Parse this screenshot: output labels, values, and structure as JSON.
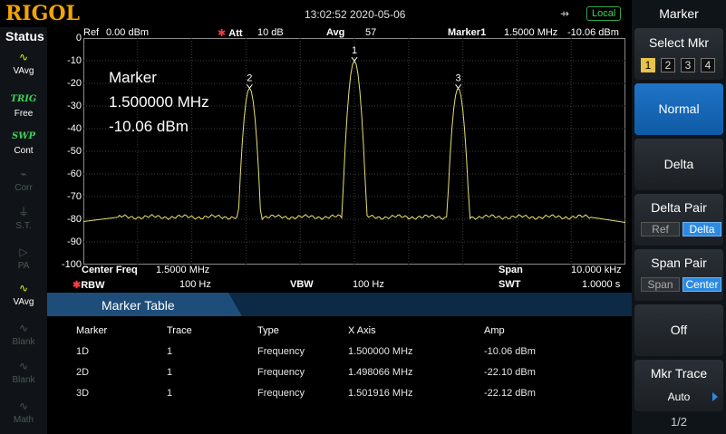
{
  "header": {
    "logo": "RIGOL",
    "datetime": "13:02:52 2020-05-06",
    "usb_icon": "usb-icon",
    "local_label": "Local"
  },
  "status": {
    "title": "Status",
    "items": [
      {
        "icon": "trace-avg-icon",
        "glyph": "∿",
        "label": "VAvg",
        "active": true
      },
      {
        "icon": "trig-icon",
        "glyph": "TRIG",
        "label": "Free",
        "active": true
      },
      {
        "icon": "swp-icon",
        "glyph": "SWP",
        "label": "Cont",
        "active": true
      },
      {
        "icon": "corr-icon",
        "glyph": "⌁",
        "label": "Corr",
        "active": false
      },
      {
        "icon": "source-icon",
        "glyph": "⏚",
        "label": "S.T.",
        "active": false
      },
      {
        "icon": "preamp-icon",
        "glyph": "▷",
        "label": "PA",
        "active": false
      },
      {
        "icon": "trace-vavg-icon",
        "glyph": "∿",
        "label": "VAvg",
        "active": true
      },
      {
        "icon": "trace-blank-icon",
        "glyph": "∿",
        "label": "Blank",
        "active": false
      },
      {
        "icon": "trace-blank-icon",
        "glyph": "∿",
        "label": "Blank",
        "active": false
      },
      {
        "icon": "trace-math-icon",
        "glyph": "∿",
        "label": "Math",
        "active": false
      }
    ]
  },
  "info": {
    "ref": "Ref",
    "ref_value": "0.00 dBm",
    "att": "Att",
    "att_value": "10 dB",
    "avg": "Avg",
    "avg_value": "57",
    "marker": "Marker1",
    "marker_freq": "1.5000 MHz",
    "marker_amp": "-10.06 dBm"
  },
  "readout": {
    "line1": "Marker",
    "line2": "1.500000 MHz",
    "line3": "-10.06 dBm"
  },
  "chart_data": {
    "type": "line",
    "x": [
      1.495,
      1.4965,
      1.4975,
      1.4979,
      1.498,
      1.4981,
      1.4985,
      1.4995,
      1.4999,
      1.5,
      1.5001,
      1.5005,
      1.5015,
      1.5018,
      1.5019,
      1.502,
      1.5025,
      1.505
    ],
    "y": [
      -82,
      -79,
      -79,
      -72,
      -22.1,
      -72,
      -79,
      -79,
      -72,
      -10.06,
      -72,
      -79,
      -79,
      -72,
      -22.12,
      -72,
      -79,
      -82
    ],
    "ylim": [
      -100,
      0
    ],
    "xlim": [
      1.495,
      1.505
    ],
    "ytick_labels": [
      "0",
      "-10",
      "-20",
      "-30",
      "-40",
      "-50",
      "-60",
      "-70",
      "-80",
      "-90",
      "-100"
    ],
    "markers": [
      {
        "label": "1",
        "x": 1.5,
        "y": -10.06
      },
      {
        "label": "2",
        "x": 1.498066,
        "y": -22.1
      },
      {
        "label": "3",
        "x": 1.501916,
        "y": -22.12
      }
    ],
    "trace_color": "#e8e070",
    "grid_color": "#3a3a3a"
  },
  "sweep": {
    "center_label": "Center Freq",
    "center_value": "1.5000 MHz",
    "span_label": "Span",
    "span_value": "10.000 kHz",
    "rbw_label": "RBW",
    "rbw_value": "100 Hz",
    "vbw_label": "VBW",
    "vbw_value": "100 Hz",
    "swt_label": "SWT",
    "swt_value": "1.0000 s"
  },
  "marker_table": {
    "title": "Marker Table",
    "headers": [
      "Marker",
      "Trace",
      "Type",
      "X Axis",
      "Amp"
    ],
    "rows": [
      [
        "1D",
        "1",
        "Frequency",
        "1.500000 MHz",
        "-10.06 dBm"
      ],
      [
        "2D",
        "1",
        "Frequency",
        "1.498066 MHz",
        "-22.10 dBm"
      ],
      [
        "3D",
        "1",
        "Frequency",
        "1.501916 MHz",
        "-22.12 dBm"
      ]
    ]
  },
  "menu": {
    "title": "Marker",
    "select_mkr": "Select Mkr",
    "marker_numbers": [
      "1",
      "2",
      "3",
      "4"
    ],
    "normal": "Normal",
    "delta": "Delta",
    "delta_pair": "Delta Pair",
    "delta_pair_ref": "Ref",
    "delta_pair_delta": "Delta",
    "span_pair": "Span Pair",
    "span_pair_span": "Span",
    "span_pair_center": "Center",
    "off": "Off",
    "mkr_trace": "Mkr Trace",
    "mkr_trace_value": "Auto",
    "page": "1/2"
  }
}
